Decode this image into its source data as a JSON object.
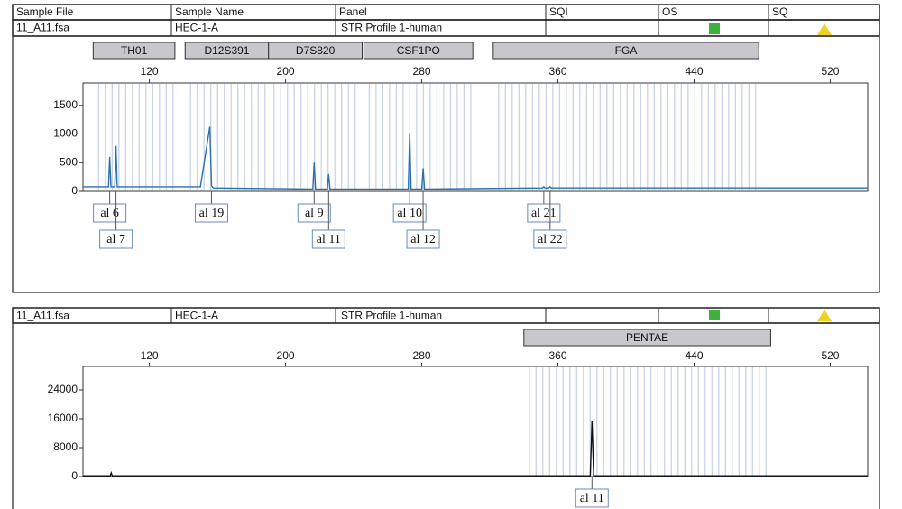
{
  "header": {
    "columns": [
      "Sample File",
      "Sample Name",
      "Panel",
      "SQI",
      "OS",
      "SQ"
    ]
  },
  "chart_data": [
    {
      "type": "line",
      "sample_file": "11_A11.fsa",
      "sample_name": "HEC-1-A",
      "panel": "STR Profile 1-human",
      "loci": [
        {
          "name": "TH01",
          "range": [
            87,
            135
          ]
        },
        {
          "name": "D12S391",
          "range": [
            141,
            190
          ]
        },
        {
          "name": "D7S820",
          "range": [
            190,
            245
          ]
        },
        {
          "name": "CSF1PO",
          "range": [
            246,
            310
          ]
        },
        {
          "name": "FGA",
          "range": [
            322,
            478
          ]
        }
      ],
      "xlim": [
        81,
        542
      ],
      "xticks": [
        120,
        200,
        280,
        360,
        440,
        520
      ],
      "ylim": [
        0,
        1890
      ],
      "yticks": [
        0,
        500,
        1000,
        1500
      ],
      "series": [
        {
          "color": "#2a6fb0",
          "x": [
            81,
            96,
            96.7,
            97.4,
            99.7,
            100.4,
            101.1,
            150,
            155.5,
            156.5,
            157.5,
            216,
            216.8,
            217.6,
            224.5,
            225.3,
            226.1,
            272.1,
            272.9,
            273.7,
            280,
            280.8,
            281.6,
            351,
            351.7,
            352.4,
            354.7,
            355.4,
            356.1,
            542
          ],
          "values": [
            80,
            80,
            600,
            80,
            80,
            790,
            80,
            80,
            1130,
            100,
            60,
            40,
            500,
            40,
            40,
            300,
            40,
            40,
            1020,
            40,
            40,
            400,
            40,
            60,
            80,
            60,
            60,
            80,
            60,
            60
          ]
        }
      ],
      "alleles": [
        {
          "label": "al 6",
          "x": 96.7
        },
        {
          "label": "al 7",
          "x": 100.4
        },
        {
          "label": "al 19",
          "x": 156.5
        },
        {
          "label": "al 9",
          "x": 216.8
        },
        {
          "label": "al 11",
          "x": 225.3
        },
        {
          "label": "al 10",
          "x": 272.9
        },
        {
          "label": "al 12",
          "x": 280.8
        },
        {
          "label": "al 21",
          "x": 351.7
        },
        {
          "label": "al 22",
          "x": 355.4
        }
      ]
    },
    {
      "type": "line",
      "sample_file": "11_A11.fsa",
      "sample_name": "HEC-1-A",
      "panel": "STR Profile 1-human",
      "loci": [
        {
          "name": "PENTAE",
          "range": [
            340,
            485
          ]
        }
      ],
      "xlim": [
        81,
        542
      ],
      "xticks": [
        120,
        200,
        280,
        360,
        440,
        520
      ],
      "ylim": [
        0,
        30500
      ],
      "yticks": [
        0,
        8000,
        16000,
        24000
      ],
      "series": [
        {
          "color": "#111111",
          "x": [
            81,
            97,
            97.6,
            98.2,
            379,
            380,
            381,
            542
          ],
          "values": [
            200,
            200,
            1000,
            200,
            200,
            15500,
            200,
            200
          ]
        }
      ],
      "alleles": [
        {
          "label": "al 11",
          "x": 380
        }
      ]
    }
  ]
}
